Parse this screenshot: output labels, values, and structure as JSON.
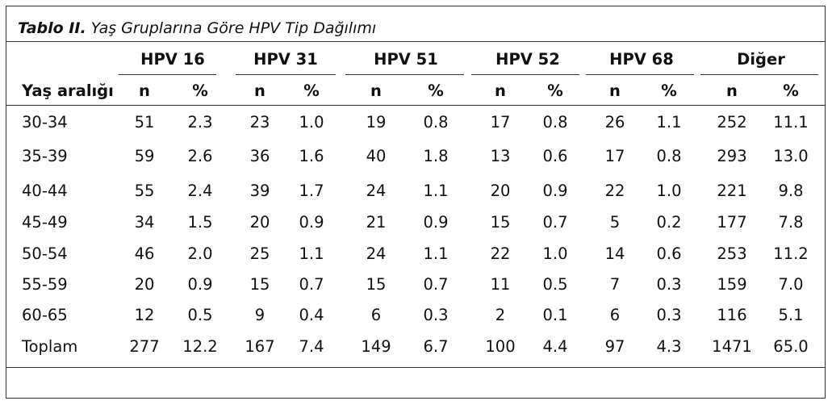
{
  "caption": {
    "label": "Tablo II.",
    "text": "Yaş Gruplarına Göre HPV Tip Dağılımı"
  },
  "table": {
    "row_header": "Yaş aralığı",
    "groups": [
      "HPV 16",
      "HPV 31",
      "HPV 51",
      "HPV 52",
      "HPV 68",
      "Diğer"
    ],
    "sub_headers": [
      "n",
      "%"
    ],
    "rows": [
      {
        "label": "30-34",
        "values": [
          "51",
          "2.3",
          "23",
          "1.0",
          "19",
          "0.8",
          "17",
          "0.8",
          "26",
          "1.1",
          "252",
          "11.1"
        ]
      },
      {
        "label": "35-39",
        "values": [
          "59",
          "2.6",
          "36",
          "1.6",
          "40",
          "1.8",
          "13",
          "0.6",
          "17",
          "0.8",
          "293",
          "13.0"
        ]
      },
      {
        "label": "40-44",
        "values": [
          "55",
          "2.4",
          "39",
          "1.7",
          "24",
          "1.1",
          "20",
          "0.9",
          "22",
          "1.0",
          "221",
          "9.8"
        ]
      },
      {
        "label": "45-49",
        "values": [
          "34",
          "1.5",
          "20",
          "0.9",
          "21",
          "0.9",
          "15",
          "0.7",
          "5",
          "0.2",
          "177",
          "7.8"
        ]
      },
      {
        "label": "50-54",
        "values": [
          "46",
          "2.0",
          "25",
          "1.1",
          "24",
          "1.1",
          "22",
          "1.0",
          "14",
          "0.6",
          "253",
          "11.2"
        ]
      },
      {
        "label": "55-59",
        "values": [
          "20",
          "0.9",
          "15",
          "0.7",
          "15",
          "0.7",
          "11",
          "0.5",
          "7",
          "0.3",
          "159",
          "7.0"
        ]
      },
      {
        "label": "60-65",
        "values": [
          "12",
          "0.5",
          "9",
          "0.4",
          "6",
          "0.3",
          "2",
          "0.1",
          "6",
          "0.3",
          "116",
          "5.1"
        ]
      },
      {
        "label": "Toplam",
        "values": [
          "277",
          "12.2",
          "167",
          "7.4",
          "149",
          "6.7",
          "100",
          "4.4",
          "97",
          "4.3",
          "1471",
          "65.0"
        ]
      }
    ]
  }
}
